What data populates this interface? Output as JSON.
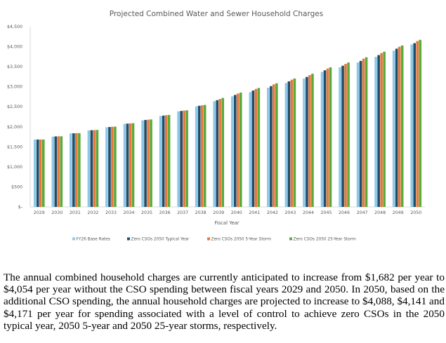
{
  "chart_data": {
    "type": "bar",
    "title": "Projected Combined Water and Sewer Household Charges",
    "xlabel": "Fiscal Year",
    "ylabel": "",
    "ylim": [
      0,
      4500
    ],
    "yticks": [
      0,
      500,
      1000,
      1500,
      2000,
      2500,
      3000,
      3500,
      4000,
      4500
    ],
    "ytick_labels": [
      "$-",
      "$500",
      "$1,000",
      "$1,500",
      "$2,000",
      "$2,500",
      "$3,000",
      "$3,500",
      "$4,000",
      "$4,500"
    ],
    "grid": false,
    "legend_position": "bottom",
    "categories": [
      "2029",
      "2030",
      "2031",
      "2032",
      "2033",
      "2034",
      "2035",
      "2036",
      "2037",
      "2038",
      "2039",
      "2040",
      "2041",
      "2042",
      "2043",
      "2044",
      "2045",
      "2046",
      "2047",
      "2048",
      "2049",
      "2050"
    ],
    "series": [
      {
        "name": "FY26 Base Rates",
        "color": "#8DC8E8",
        "values": [
          1682,
          1755,
          1835,
          1910,
          1990,
          2075,
          2160,
          2270,
          2385,
          2510,
          2640,
          2760,
          2865,
          2975,
          3095,
          3205,
          3370,
          3485,
          3605,
          3745,
          3900,
          4054
        ]
      },
      {
        "name": "Zero CSOs 2050 Typical Year",
        "color": "#1F4E6B",
        "values": [
          1682,
          1760,
          1838,
          1915,
          1995,
          2080,
          2170,
          2280,
          2395,
          2525,
          2665,
          2795,
          2905,
          3015,
          3135,
          3245,
          3410,
          3525,
          3645,
          3790,
          3950,
          4088
        ]
      },
      {
        "name": "Zero CSOs 2050 5-Year Storm",
        "color": "#E8783C",
        "values": [
          1682,
          1762,
          1840,
          1918,
          2000,
          2085,
          2178,
          2290,
          2405,
          2535,
          2695,
          2830,
          2945,
          3060,
          3175,
          3290,
          3455,
          3570,
          3700,
          3840,
          4000,
          4141
        ]
      },
      {
        "name": "Zero CSOs 2050 25-Year Storm",
        "color": "#5BAA3C",
        "values": [
          1682,
          1764,
          1842,
          1922,
          2003,
          2090,
          2184,
          2296,
          2412,
          2545,
          2720,
          2855,
          2970,
          3085,
          3205,
          3325,
          3485,
          3605,
          3735,
          3875,
          4030,
          4171
        ]
      }
    ]
  },
  "paragraph": "The annual combined household charges are currently anticipated to increase from $1,682 per year to $4,054 per year without the CSO spending between fiscal years 2029 and 2050.  In 2050, based on the additional CSO spending, the annual household charges are projected to increase to $4,088, $4,141 and $4,171 per year for spending associated with a level of control to achieve zero CSOs in the 2050 typical year, 2050 5-year and 2050 25-year storms, respectively."
}
